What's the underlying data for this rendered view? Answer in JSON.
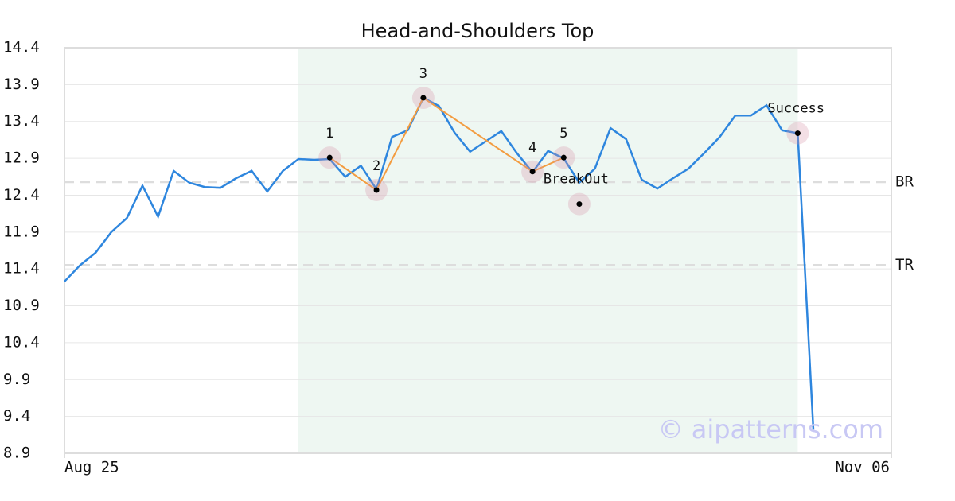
{
  "chart_data": {
    "type": "line",
    "title": "Head-and-Shoulders Top",
    "x": [
      0,
      1,
      2,
      3,
      4,
      5,
      6,
      7,
      8,
      9,
      10,
      11,
      12,
      13,
      14,
      15,
      16,
      17,
      18,
      19,
      20,
      21,
      22,
      23,
      24,
      25,
      26,
      27,
      28,
      29,
      30,
      31,
      32,
      33,
      34,
      35,
      36,
      37,
      38,
      39,
      40,
      41,
      42,
      43,
      44,
      45,
      46,
      47,
      48
    ],
    "series": [
      {
        "color": "#2e86de",
        "values": [
          11.23,
          11.45,
          11.62,
          11.9,
          12.09,
          12.53,
          12.11,
          12.73,
          12.57,
          12.51,
          12.5,
          12.63,
          12.73,
          12.45,
          12.73,
          12.89,
          12.88,
          12.89,
          12.65,
          12.8,
          12.48,
          13.19,
          13.28,
          13.72,
          13.61,
          13.25,
          12.99,
          13.13,
          13.27,
          12.97,
          12.71,
          13.0,
          12.9,
          12.57,
          12.76,
          13.31,
          13.16,
          12.61,
          12.49,
          12.63,
          12.76,
          12.97,
          13.19,
          13.48,
          13.48,
          13.62,
          13.28,
          13.24,
          9.22
        ]
      }
    ],
    "xlim": [
      0,
      53
    ],
    "xticks": [
      {
        "value": 0,
        "label": "Aug 25"
      },
      {
        "value": 53,
        "label": "Nov 06"
      }
    ],
    "ylim": [
      8.9,
      14.4
    ],
    "yticks": [
      8.9,
      9.4,
      9.9,
      10.4,
      10.9,
      11.4,
      11.9,
      12.4,
      12.9,
      13.4,
      13.9,
      14.4
    ],
    "grid": true,
    "shaded_range": [
      15,
      47
    ],
    "pattern": {
      "color": "#f39c40",
      "points": [
        {
          "label": "1",
          "x": 17,
          "y": 12.91
        },
        {
          "label": "2",
          "x": 20,
          "y": 12.47
        },
        {
          "label": "3",
          "x": 23,
          "y": 13.72
        },
        {
          "label": "4",
          "x": 30,
          "y": 12.72
        },
        {
          "label": "5",
          "x": 32,
          "y": 12.91
        }
      ]
    },
    "signals": [
      {
        "label": "BreakOut",
        "x": 33,
        "y": 12.28
      },
      {
        "label": "Success",
        "x": 47,
        "y": 13.24
      }
    ],
    "levels": [
      {
        "label": "BR",
        "value": 12.58
      },
      {
        "label": "TR",
        "value": 11.45
      }
    ],
    "watermark": "© aipatterns.com"
  }
}
